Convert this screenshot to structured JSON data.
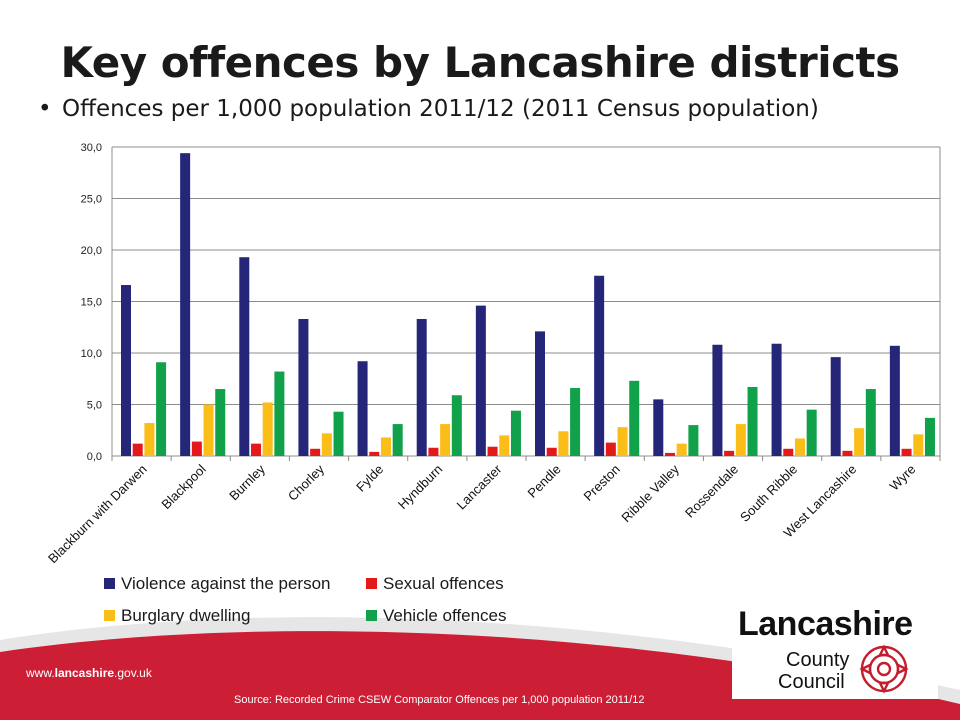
{
  "title": "Key offences by Lancashire districts",
  "subtitle": "Offences per 1,000 population 2011/12 (2011 Census population)",
  "bullet": "•",
  "footer": {
    "url_prefix": "www.",
    "url_brand": "lancashire",
    "url_suffix": ".gov.uk",
    "source": "Source: Recorded Crime CSEW Comparator Offences per 1,000 population 2011/12"
  },
  "logo": {
    "line1": "Lancashire",
    "line2": "County",
    "line3": "Council"
  },
  "colors": {
    "violence": "#262679",
    "sexual": "#e41a1a",
    "burglary": "#fbbd18",
    "vehicle": "#11a14b",
    "footer_band": "#cc1f36",
    "grid": "#8c8c8c"
  },
  "chart_data": {
    "type": "bar",
    "categories": [
      "Blackburn with Darwen",
      "Blackpool",
      "Burnley",
      "Chorley",
      "Fylde",
      "Hyndburn",
      "Lancaster",
      "Pendle",
      "Preston",
      "Ribble Valley",
      "Rossendale",
      "South Ribble",
      "West Lancashire",
      "Wyre"
    ],
    "series": [
      {
        "name": "Violence against the person",
        "color": "#262679",
        "values": [
          16.6,
          29.4,
          19.3,
          13.3,
          9.2,
          13.3,
          14.6,
          12.1,
          17.5,
          5.5,
          10.8,
          10.9,
          9.6,
          10.7
        ]
      },
      {
        "name": "Sexual offences",
        "color": "#e41a1a",
        "values": [
          1.2,
          1.4,
          1.2,
          0.7,
          0.4,
          0.8,
          0.9,
          0.8,
          1.3,
          0.3,
          0.5,
          0.7,
          0.5,
          0.7
        ]
      },
      {
        "name": "Burglary dwelling",
        "color": "#fbbd18",
        "values": [
          3.2,
          5.0,
          5.2,
          2.2,
          1.8,
          3.1,
          2.0,
          2.4,
          2.8,
          1.2,
          3.1,
          1.7,
          2.7,
          2.1
        ]
      },
      {
        "name": "Vehicle offences",
        "color": "#11a14b",
        "values": [
          9.1,
          6.5,
          8.2,
          4.3,
          3.1,
          5.9,
          4.4,
          6.6,
          7.3,
          3.0,
          6.7,
          4.5,
          6.5,
          3.7
        ]
      }
    ],
    "ylim": [
      0,
      30
    ],
    "yticks": [
      "0,0",
      "5,0",
      "10,0",
      "15,0",
      "20,0",
      "25,0",
      "30,0"
    ],
    "ytick_values": [
      0,
      5,
      10,
      15,
      20,
      25,
      30
    ],
    "grid": true,
    "legend_position": "bottom-left",
    "xlabel": "",
    "ylabel": ""
  }
}
